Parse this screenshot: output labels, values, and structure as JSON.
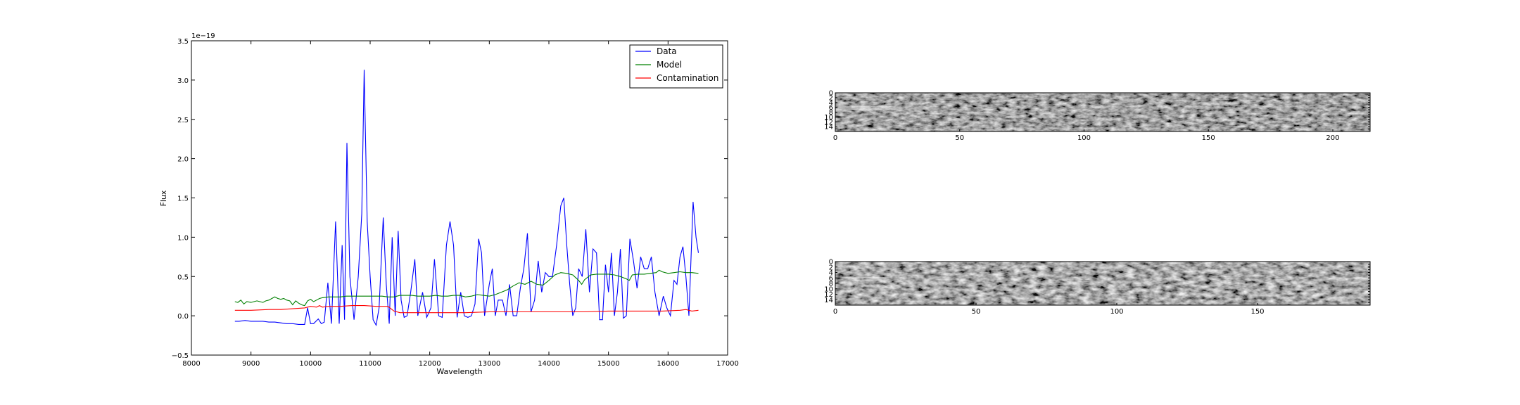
{
  "chart_data": [
    {
      "type": "line",
      "title": "",
      "xlabel": "Wavelength",
      "ylabel": "Flux",
      "y_offset_label": "1e−19",
      "xlim": [
        8000,
        17000
      ],
      "ylim": [
        -0.5,
        3.5
      ],
      "xticks": [
        8000,
        9000,
        10000,
        11000,
        12000,
        13000,
        14000,
        15000,
        16000,
        17000
      ],
      "yticks": [
        -0.5,
        0.0,
        0.5,
        1.0,
        1.5,
        2.0,
        2.5,
        3.0,
        3.5
      ],
      "legend_position": "top-right",
      "grid": false,
      "series": [
        {
          "name": "Data",
          "color": "#0000ff",
          "points": [
            [
              8730,
              -0.07
            ],
            [
              8800,
              -0.07
            ],
            [
              8900,
              -0.06
            ],
            [
              9000,
              -0.07
            ],
            [
              9100,
              -0.07
            ],
            [
              9200,
              -0.07
            ],
            [
              9300,
              -0.08
            ],
            [
              9400,
              -0.08
            ],
            [
              9500,
              -0.09
            ],
            [
              9600,
              -0.1
            ],
            [
              9700,
              -0.1
            ],
            [
              9800,
              -0.11
            ],
            [
              9900,
              -0.11
            ],
            [
              9950,
              0.1
            ],
            [
              10000,
              -0.1
            ],
            [
              10050,
              -0.1
            ],
            [
              10130,
              -0.04
            ],
            [
              10180,
              -0.1
            ],
            [
              10230,
              -0.08
            ],
            [
              10290,
              0.42
            ],
            [
              10350,
              -0.1
            ],
            [
              10420,
              1.2
            ],
            [
              10480,
              -0.1
            ],
            [
              10530,
              0.9
            ],
            [
              10570,
              -0.05
            ],
            [
              10610,
              2.2
            ],
            [
              10660,
              0.5
            ],
            [
              10730,
              -0.05
            ],
            [
              10800,
              0.5
            ],
            [
              10860,
              1.3
            ],
            [
              10900,
              3.13
            ],
            [
              10950,
              1.2
            ],
            [
              11000,
              0.5
            ],
            [
              11050,
              -0.05
            ],
            [
              11100,
              -0.12
            ],
            [
              11150,
              0.1
            ],
            [
              11220,
              1.25
            ],
            [
              11270,
              0.4
            ],
            [
              11320,
              -0.1
            ],
            [
              11370,
              1.0
            ],
            [
              11420,
              0.0
            ],
            [
              11470,
              1.08
            ],
            [
              11520,
              0.2
            ],
            [
              11570,
              -0.02
            ],
            [
              11620,
              0.0
            ],
            [
              11680,
              0.3
            ],
            [
              11750,
              0.72
            ],
            [
              11800,
              0.0
            ],
            [
              11880,
              0.3
            ],
            [
              11950,
              -0.02
            ],
            [
              12020,
              0.1
            ],
            [
              12080,
              0.72
            ],
            [
              12150,
              0.0
            ],
            [
              12210,
              -0.02
            ],
            [
              12280,
              0.9
            ],
            [
              12340,
              1.2
            ],
            [
              12400,
              0.9
            ],
            [
              12460,
              -0.02
            ],
            [
              12520,
              0.3
            ],
            [
              12580,
              0.0
            ],
            [
              12640,
              -0.02
            ],
            [
              12700,
              0.0
            ],
            [
              12760,
              0.15
            ],
            [
              12820,
              0.98
            ],
            [
              12870,
              0.8
            ],
            [
              12920,
              0.0
            ],
            [
              13000,
              0.4
            ],
            [
              13050,
              0.6
            ],
            [
              13100,
              0.0
            ],
            [
              13150,
              0.2
            ],
            [
              13220,
              0.2
            ],
            [
              13280,
              0.0
            ],
            [
              13340,
              0.4
            ],
            [
              13400,
              0.0
            ],
            [
              13460,
              0.0
            ],
            [
              13520,
              0.35
            ],
            [
              13580,
              0.6
            ],
            [
              13640,
              1.05
            ],
            [
              13700,
              0.05
            ],
            [
              13760,
              0.2
            ],
            [
              13820,
              0.7
            ],
            [
              13880,
              0.3
            ],
            [
              13940,
              0.55
            ],
            [
              14000,
              0.5
            ],
            [
              14060,
              0.5
            ],
            [
              14130,
              0.9
            ],
            [
              14200,
              1.4
            ],
            [
              14250,
              1.5
            ],
            [
              14300,
              0.9
            ],
            [
              14350,
              0.4
            ],
            [
              14400,
              0.0
            ],
            [
              14450,
              0.1
            ],
            [
              14500,
              0.6
            ],
            [
              14560,
              0.5
            ],
            [
              14620,
              1.1
            ],
            [
              14680,
              0.3
            ],
            [
              14740,
              0.85
            ],
            [
              14800,
              0.8
            ],
            [
              14850,
              -0.05
            ],
            [
              14900,
              -0.05
            ],
            [
              14950,
              0.65
            ],
            [
              15000,
              0.3
            ],
            [
              15050,
              0.8
            ],
            [
              15100,
              0.0
            ],
            [
              15150,
              0.3
            ],
            [
              15200,
              0.85
            ],
            [
              15250,
              -0.03
            ],
            [
              15300,
              0.0
            ],
            [
              15360,
              0.98
            ],
            [
              15420,
              0.7
            ],
            [
              15480,
              0.35
            ],
            [
              15540,
              0.75
            ],
            [
              15600,
              0.6
            ],
            [
              15660,
              0.6
            ],
            [
              15720,
              0.75
            ],
            [
              15780,
              0.3
            ],
            [
              15850,
              0.0
            ],
            [
              15920,
              0.25
            ],
            [
              15980,
              0.1
            ],
            [
              16040,
              0.0
            ],
            [
              16100,
              0.45
            ],
            [
              16150,
              0.4
            ],
            [
              16200,
              0.75
            ],
            [
              16250,
              0.88
            ],
            [
              16300,
              0.5
            ],
            [
              16350,
              0.0
            ],
            [
              16420,
              1.45
            ],
            [
              16470,
              1.0
            ],
            [
              16510,
              0.8
            ]
          ]
        },
        {
          "name": "Model",
          "color": "#008000",
          "points": [
            [
              8730,
              0.18
            ],
            [
              8780,
              0.17
            ],
            [
              8830,
              0.2
            ],
            [
              8880,
              0.15
            ],
            [
              8930,
              0.18
            ],
            [
              9000,
              0.17
            ],
            [
              9050,
              0.18
            ],
            [
              9100,
              0.19
            ],
            [
              9150,
              0.18
            ],
            [
              9200,
              0.17
            ],
            [
              9250,
              0.19
            ],
            [
              9300,
              0.2
            ],
            [
              9350,
              0.22
            ],
            [
              9400,
              0.24
            ],
            [
              9450,
              0.22
            ],
            [
              9500,
              0.21
            ],
            [
              9550,
              0.22
            ],
            [
              9600,
              0.2
            ],
            [
              9650,
              0.19
            ],
            [
              9700,
              0.14
            ],
            [
              9750,
              0.19
            ],
            [
              9800,
              0.16
            ],
            [
              9850,
              0.14
            ],
            [
              9900,
              0.13
            ],
            [
              9950,
              0.19
            ],
            [
              10000,
              0.21
            ],
            [
              10050,
              0.18
            ],
            [
              10100,
              0.2
            ],
            [
              10150,
              0.22
            ],
            [
              10200,
              0.23
            ],
            [
              10300,
              0.24
            ],
            [
              10400,
              0.24
            ],
            [
              10500,
              0.24
            ],
            [
              10600,
              0.25
            ],
            [
              10700,
              0.25
            ],
            [
              10800,
              0.25
            ],
            [
              10900,
              0.25
            ],
            [
              11000,
              0.25
            ],
            [
              11100,
              0.25
            ],
            [
              11200,
              0.25
            ],
            [
              11300,
              0.24
            ],
            [
              11400,
              0.24
            ],
            [
              11500,
              0.26
            ],
            [
              11600,
              0.26
            ],
            [
              11700,
              0.26
            ],
            [
              11800,
              0.25
            ],
            [
              11900,
              0.25
            ],
            [
              12000,
              0.25
            ],
            [
              12100,
              0.26
            ],
            [
              12200,
              0.25
            ],
            [
              12300,
              0.25
            ],
            [
              12400,
              0.26
            ],
            [
              12500,
              0.26
            ],
            [
              12600,
              0.24
            ],
            [
              12700,
              0.25
            ],
            [
              12800,
              0.27
            ],
            [
              12900,
              0.26
            ],
            [
              13000,
              0.25
            ],
            [
              13100,
              0.27
            ],
            [
              13200,
              0.3
            ],
            [
              13300,
              0.33
            ],
            [
              13400,
              0.38
            ],
            [
              13500,
              0.42
            ],
            [
              13600,
              0.4
            ],
            [
              13700,
              0.44
            ],
            [
              13800,
              0.4
            ],
            [
              13900,
              0.39
            ],
            [
              14000,
              0.45
            ],
            [
              14100,
              0.52
            ],
            [
              14200,
              0.55
            ],
            [
              14300,
              0.54
            ],
            [
              14400,
              0.52
            ],
            [
              14500,
              0.45
            ],
            [
              14550,
              0.4
            ],
            [
              14600,
              0.46
            ],
            [
              14700,
              0.52
            ],
            [
              14800,
              0.53
            ],
            [
              14900,
              0.53
            ],
            [
              15000,
              0.53
            ],
            [
              15100,
              0.52
            ],
            [
              15200,
              0.5
            ],
            [
              15300,
              0.47
            ],
            [
              15350,
              0.45
            ],
            [
              15400,
              0.52
            ],
            [
              15500,
              0.53
            ],
            [
              15600,
              0.53
            ],
            [
              15700,
              0.54
            ],
            [
              15800,
              0.55
            ],
            [
              15850,
              0.58
            ],
            [
              15900,
              0.56
            ],
            [
              16000,
              0.54
            ],
            [
              16100,
              0.55
            ],
            [
              16200,
              0.56
            ],
            [
              16300,
              0.55
            ],
            [
              16400,
              0.55
            ],
            [
              16510,
              0.54
            ]
          ]
        },
        {
          "name": "Contamination",
          "color": "#ff0000",
          "points": [
            [
              8730,
              0.07
            ],
            [
              9000,
              0.07
            ],
            [
              9300,
              0.08
            ],
            [
              9500,
              0.08
            ],
            [
              9700,
              0.09
            ],
            [
              9900,
              0.1
            ],
            [
              10000,
              0.12
            ],
            [
              10100,
              0.11
            ],
            [
              10150,
              0.13
            ],
            [
              10200,
              0.11
            ],
            [
              10300,
              0.12
            ],
            [
              10500,
              0.12
            ],
            [
              10700,
              0.13
            ],
            [
              10900,
              0.13
            ],
            [
              11100,
              0.12
            ],
            [
              11300,
              0.12
            ],
            [
              11350,
              0.09
            ],
            [
              11400,
              0.06
            ],
            [
              11500,
              0.04
            ],
            [
              11700,
              0.04
            ],
            [
              12000,
              0.04
            ],
            [
              12300,
              0.04
            ],
            [
              12600,
              0.04
            ],
            [
              13000,
              0.05
            ],
            [
              13300,
              0.05
            ],
            [
              13600,
              0.05
            ],
            [
              14000,
              0.05
            ],
            [
              14300,
              0.05
            ],
            [
              14600,
              0.05
            ],
            [
              15000,
              0.06
            ],
            [
              15300,
              0.06
            ],
            [
              15600,
              0.06
            ],
            [
              15900,
              0.06
            ],
            [
              16200,
              0.07
            ],
            [
              16300,
              0.08
            ],
            [
              16400,
              0.06
            ],
            [
              16510,
              0.07
            ]
          ]
        }
      ]
    },
    {
      "type": "heatmap",
      "colormap": "gray",
      "xticks": [
        0,
        50,
        100,
        150,
        200
      ],
      "yticks": [
        0,
        2,
        4,
        6,
        8,
        10,
        12,
        14
      ],
      "xlim": [
        0,
        215
      ],
      "ylim": [
        16,
        0
      ]
    },
    {
      "type": "heatmap",
      "colormap": "gray",
      "xticks": [
        0,
        50,
        100,
        150
      ],
      "yticks": [
        0,
        2,
        4,
        6,
        8,
        10,
        12,
        14
      ],
      "xlim": [
        0,
        190
      ],
      "ylim": [
        16,
        0
      ]
    }
  ]
}
